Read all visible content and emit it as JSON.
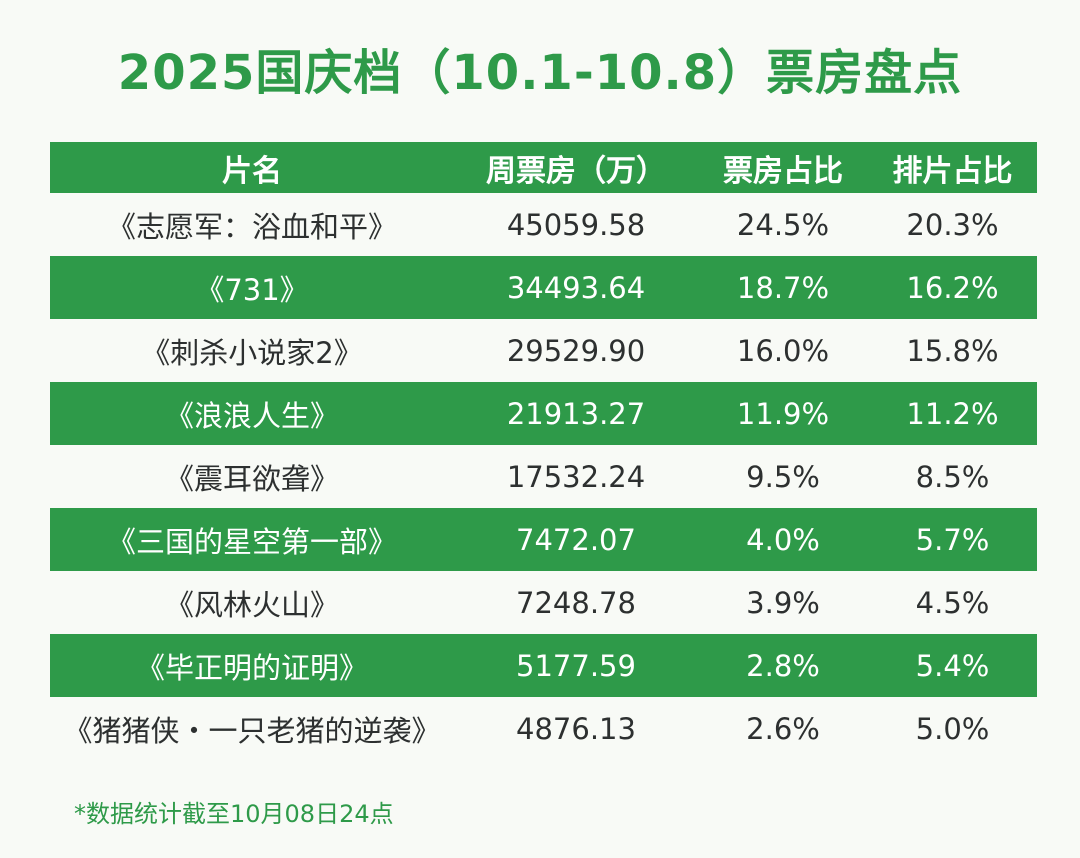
{
  "title": "2025国庆档（10.1-10.8）票房盘点",
  "colors": {
    "accent": "#2e9a49",
    "text": "#2d3030",
    "background": "#f8faf6"
  },
  "table": {
    "headers": [
      "片名",
      "周票房（万）",
      "票房占比",
      "排片占比"
    ],
    "rows": [
      [
        "《志愿军：浴血和平》",
        "45059.58",
        "24.5%",
        "20.3%"
      ],
      [
        "《731》",
        "34493.64",
        "18.7%",
        "16.2%"
      ],
      [
        "《刺杀小说家2》",
        "29529.90",
        "16.0%",
        "15.8%"
      ],
      [
        "《浪浪人生》",
        "21913.27",
        "11.9%",
        "11.2%"
      ],
      [
        "《震耳欲聋》",
        "17532.24",
        "9.5%",
        "8.5%"
      ],
      [
        "《三国的星空第一部》",
        "7472.07",
        "4.0%",
        "5.7%"
      ],
      [
        "《风林火山》",
        "7248.78",
        "3.9%",
        "4.5%"
      ],
      [
        "《毕正明的证明》",
        "5177.59",
        "2.8%",
        "5.4%"
      ],
      [
        "《猪猪侠・一只老猪的逆袭》",
        "4876.13",
        "2.6%",
        "5.0%"
      ]
    ]
  },
  "footnote": "*数据统计截至10月08日24点",
  "chart_data": {
    "type": "table",
    "title": "2025国庆档（10.1-10.8）票房盘点",
    "columns": [
      "片名",
      "周票房（万）",
      "票房占比",
      "排片占比"
    ],
    "rows": [
      [
        "《志愿军：浴血和平》",
        45059.58,
        "24.5%",
        "20.3%"
      ],
      [
        "《731》",
        34493.64,
        "18.7%",
        "16.2%"
      ],
      [
        "《刺杀小说家2》",
        29529.9,
        "16.0%",
        "15.8%"
      ],
      [
        "《浪浪人生》",
        21913.27,
        "11.9%",
        "11.2%"
      ],
      [
        "《震耳欲聋》",
        17532.24,
        "9.5%",
        "8.5%"
      ],
      [
        "《三国的星空第一部》",
        7472.07,
        "4.0%",
        "5.7%"
      ],
      [
        "《风林火山》",
        7248.78,
        "3.9%",
        "4.5%"
      ],
      [
        "《毕正明的证明》",
        5177.59,
        "2.8%",
        "5.4%"
      ],
      [
        "《猪猪侠・一只老猪的逆袭》",
        4876.13,
        "2.6%",
        "5.0%"
      ]
    ],
    "footnote": "*数据统计截至10月08日24点"
  }
}
